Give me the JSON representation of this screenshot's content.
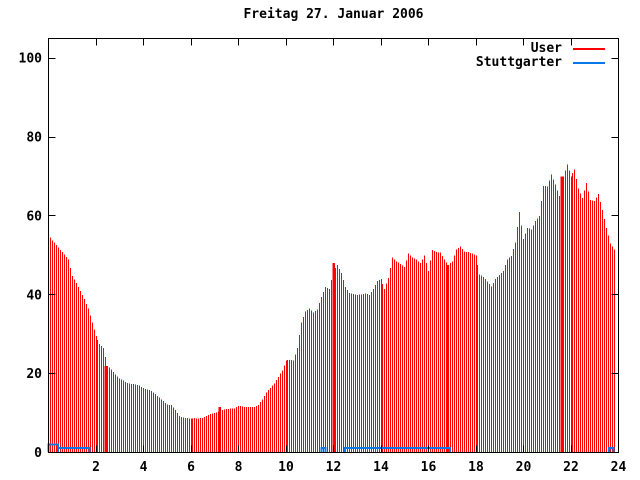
{
  "title": "Freitag 27. Januar 2006",
  "legend": {
    "items": [
      {
        "label": "User",
        "color": "#ff0000"
      },
      {
        "label": "Stuttgarter",
        "color": "#0878e8"
      }
    ]
  },
  "colors": {
    "user_series": "#ff0000",
    "stuttgarter_series": "#0878e8",
    "axis": "#000000",
    "background": "#ffffff"
  },
  "chart_data": {
    "type": "bar",
    "title": "Freitag 27. Januar 2006",
    "xlabel": "",
    "ylabel": "",
    "x_unit": "hour of day",
    "xlim": [
      0,
      24
    ],
    "ylim": [
      0,
      105
    ],
    "x_ticks": [
      2,
      4,
      6,
      8,
      10,
      12,
      14,
      16,
      18,
      20,
      22,
      24
    ],
    "y_ticks": [
      0,
      20,
      40,
      60,
      80,
      100
    ],
    "grid": false,
    "legend_position": "top-right-inside",
    "series": [
      {
        "name": "User",
        "style": "impulses",
        "color": "#ff0000",
        "sample_interval_minutes": 10,
        "start_hour": 0,
        "values": [
          54.5,
          53.8,
          52.6,
          51.4,
          50.2,
          48.9,
          44.8,
          43.0,
          41.0,
          38.9,
          36.5,
          33.0,
          29.5,
          27.5,
          26.5,
          22.0,
          21.0,
          19.8,
          18.8,
          18.2,
          17.6,
          17.4,
          17.3,
          17.0,
          16.3,
          16.0,
          15.6,
          14.8,
          13.9,
          13.0,
          12.2,
          12.0,
          10.8,
          9.2,
          8.9,
          8.7,
          8.6,
          8.7,
          8.6,
          8.8,
          9.3,
          9.8,
          10.0,
          10.4,
          10.8,
          11.0,
          11.1,
          11.2,
          11.8,
          11.7,
          11.5,
          11.6,
          11.5,
          12.0,
          13.5,
          15.2,
          16.4,
          17.5,
          19.2,
          20.8,
          23.3,
          23.5,
          23.3,
          26.5,
          33.0,
          35.8,
          36.5,
          35.5,
          36.3,
          39.5,
          42.0,
          41.5,
          46.0,
          47.5,
          45.5,
          42.0,
          40.5,
          40.2,
          40.0,
          40.1,
          40.3,
          40.0,
          41.5,
          43.5,
          44.0,
          41.5,
          44.3,
          49.4,
          48.5,
          47.8,
          47.0,
          50.5,
          49.5,
          49.0,
          48.0,
          50.0,
          46.0,
          51.3,
          50.8,
          50.7,
          49.0,
          47.5,
          48.5,
          51.5,
          52.3,
          51.0,
          50.8,
          50.5,
          50.0,
          45.2,
          44.5,
          43.4,
          42.1,
          44.0,
          45.0,
          46.0,
          49.0,
          49.8,
          53.3,
          61.0,
          54.2,
          57.0,
          56.5,
          58.7,
          60.0,
          67.6,
          67.5,
          70.5,
          68.0,
          65.0,
          70.0,
          73.0,
          70.0,
          71.8,
          67.0,
          64.5,
          68.4,
          64.0,
          63.8,
          65.5,
          61.5,
          57.0,
          53.0,
          51.5
        ],
        "dense_bars": [
          {
            "hour": 2.4,
            "value": 22
          },
          {
            "hour": 7.2,
            "value": 11.5
          },
          {
            "hour": 12.0,
            "value": 48
          },
          {
            "hour": 16.8,
            "value": 47.5
          },
          {
            "hour": 21.6,
            "value": 70
          }
        ]
      },
      {
        "name": "Stuttgarter",
        "style": "steps",
        "color": "#0878e8",
        "segments": [
          {
            "from_hour": 0.0,
            "to_hour": 0.4,
            "value": 2.0
          },
          {
            "from_hour": 0.4,
            "to_hour": 1.72,
            "value": 1.2
          },
          {
            "from_hour": 11.5,
            "to_hour": 11.67,
            "value": 1.2
          },
          {
            "from_hour": 12.48,
            "to_hour": 16.9,
            "value": 1.2
          },
          {
            "from_hour": 23.6,
            "to_hour": 23.78,
            "value": 1.2
          }
        ]
      }
    ]
  }
}
